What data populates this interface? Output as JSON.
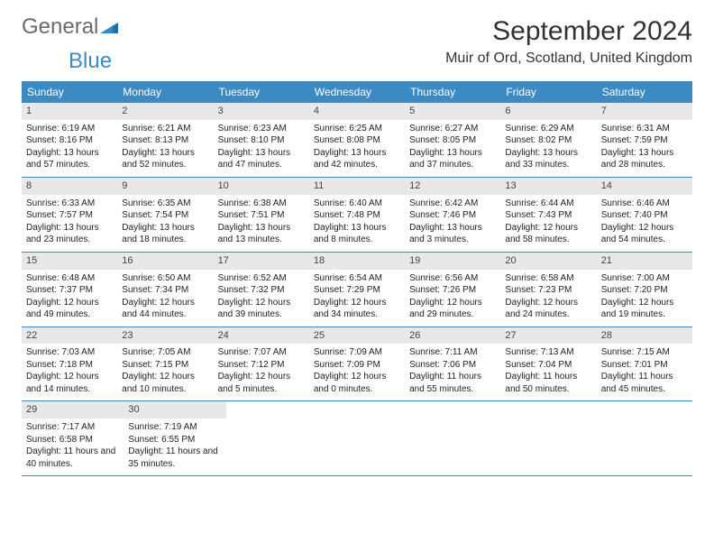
{
  "logo": {
    "text_general": "General",
    "text_blue": "Blue"
  },
  "title": "September 2024",
  "location": "Muir of Ord, Scotland, United Kingdom",
  "colors": {
    "header_bg": "#3b8ac4",
    "header_text": "#ffffff",
    "daynum_bg": "#e8e8e8",
    "border": "#3b8ac4",
    "text": "#222222"
  },
  "weekdays": [
    "Sunday",
    "Monday",
    "Tuesday",
    "Wednesday",
    "Thursday",
    "Friday",
    "Saturday"
  ],
  "weeks": [
    [
      {
        "num": "1",
        "sunrise": "Sunrise: 6:19 AM",
        "sunset": "Sunset: 8:16 PM",
        "daylight": "Daylight: 13 hours and 57 minutes."
      },
      {
        "num": "2",
        "sunrise": "Sunrise: 6:21 AM",
        "sunset": "Sunset: 8:13 PM",
        "daylight": "Daylight: 13 hours and 52 minutes."
      },
      {
        "num": "3",
        "sunrise": "Sunrise: 6:23 AM",
        "sunset": "Sunset: 8:10 PM",
        "daylight": "Daylight: 13 hours and 47 minutes."
      },
      {
        "num": "4",
        "sunrise": "Sunrise: 6:25 AM",
        "sunset": "Sunset: 8:08 PM",
        "daylight": "Daylight: 13 hours and 42 minutes."
      },
      {
        "num": "5",
        "sunrise": "Sunrise: 6:27 AM",
        "sunset": "Sunset: 8:05 PM",
        "daylight": "Daylight: 13 hours and 37 minutes."
      },
      {
        "num": "6",
        "sunrise": "Sunrise: 6:29 AM",
        "sunset": "Sunset: 8:02 PM",
        "daylight": "Daylight: 13 hours and 33 minutes."
      },
      {
        "num": "7",
        "sunrise": "Sunrise: 6:31 AM",
        "sunset": "Sunset: 7:59 PM",
        "daylight": "Daylight: 13 hours and 28 minutes."
      }
    ],
    [
      {
        "num": "8",
        "sunrise": "Sunrise: 6:33 AM",
        "sunset": "Sunset: 7:57 PM",
        "daylight": "Daylight: 13 hours and 23 minutes."
      },
      {
        "num": "9",
        "sunrise": "Sunrise: 6:35 AM",
        "sunset": "Sunset: 7:54 PM",
        "daylight": "Daylight: 13 hours and 18 minutes."
      },
      {
        "num": "10",
        "sunrise": "Sunrise: 6:38 AM",
        "sunset": "Sunset: 7:51 PM",
        "daylight": "Daylight: 13 hours and 13 minutes."
      },
      {
        "num": "11",
        "sunrise": "Sunrise: 6:40 AM",
        "sunset": "Sunset: 7:48 PM",
        "daylight": "Daylight: 13 hours and 8 minutes."
      },
      {
        "num": "12",
        "sunrise": "Sunrise: 6:42 AM",
        "sunset": "Sunset: 7:46 PM",
        "daylight": "Daylight: 13 hours and 3 minutes."
      },
      {
        "num": "13",
        "sunrise": "Sunrise: 6:44 AM",
        "sunset": "Sunset: 7:43 PM",
        "daylight": "Daylight: 12 hours and 58 minutes."
      },
      {
        "num": "14",
        "sunrise": "Sunrise: 6:46 AM",
        "sunset": "Sunset: 7:40 PM",
        "daylight": "Daylight: 12 hours and 54 minutes."
      }
    ],
    [
      {
        "num": "15",
        "sunrise": "Sunrise: 6:48 AM",
        "sunset": "Sunset: 7:37 PM",
        "daylight": "Daylight: 12 hours and 49 minutes."
      },
      {
        "num": "16",
        "sunrise": "Sunrise: 6:50 AM",
        "sunset": "Sunset: 7:34 PM",
        "daylight": "Daylight: 12 hours and 44 minutes."
      },
      {
        "num": "17",
        "sunrise": "Sunrise: 6:52 AM",
        "sunset": "Sunset: 7:32 PM",
        "daylight": "Daylight: 12 hours and 39 minutes."
      },
      {
        "num": "18",
        "sunrise": "Sunrise: 6:54 AM",
        "sunset": "Sunset: 7:29 PM",
        "daylight": "Daylight: 12 hours and 34 minutes."
      },
      {
        "num": "19",
        "sunrise": "Sunrise: 6:56 AM",
        "sunset": "Sunset: 7:26 PM",
        "daylight": "Daylight: 12 hours and 29 minutes."
      },
      {
        "num": "20",
        "sunrise": "Sunrise: 6:58 AM",
        "sunset": "Sunset: 7:23 PM",
        "daylight": "Daylight: 12 hours and 24 minutes."
      },
      {
        "num": "21",
        "sunrise": "Sunrise: 7:00 AM",
        "sunset": "Sunset: 7:20 PM",
        "daylight": "Daylight: 12 hours and 19 minutes."
      }
    ],
    [
      {
        "num": "22",
        "sunrise": "Sunrise: 7:03 AM",
        "sunset": "Sunset: 7:18 PM",
        "daylight": "Daylight: 12 hours and 14 minutes."
      },
      {
        "num": "23",
        "sunrise": "Sunrise: 7:05 AM",
        "sunset": "Sunset: 7:15 PM",
        "daylight": "Daylight: 12 hours and 10 minutes."
      },
      {
        "num": "24",
        "sunrise": "Sunrise: 7:07 AM",
        "sunset": "Sunset: 7:12 PM",
        "daylight": "Daylight: 12 hours and 5 minutes."
      },
      {
        "num": "25",
        "sunrise": "Sunrise: 7:09 AM",
        "sunset": "Sunset: 7:09 PM",
        "daylight": "Daylight: 12 hours and 0 minutes."
      },
      {
        "num": "26",
        "sunrise": "Sunrise: 7:11 AM",
        "sunset": "Sunset: 7:06 PM",
        "daylight": "Daylight: 11 hours and 55 minutes."
      },
      {
        "num": "27",
        "sunrise": "Sunrise: 7:13 AM",
        "sunset": "Sunset: 7:04 PM",
        "daylight": "Daylight: 11 hours and 50 minutes."
      },
      {
        "num": "28",
        "sunrise": "Sunrise: 7:15 AM",
        "sunset": "Sunset: 7:01 PM",
        "daylight": "Daylight: 11 hours and 45 minutes."
      }
    ],
    [
      {
        "num": "29",
        "sunrise": "Sunrise: 7:17 AM",
        "sunset": "Sunset: 6:58 PM",
        "daylight": "Daylight: 11 hours and 40 minutes."
      },
      {
        "num": "30",
        "sunrise": "Sunrise: 7:19 AM",
        "sunset": "Sunset: 6:55 PM",
        "daylight": "Daylight: 11 hours and 35 minutes."
      },
      null,
      null,
      null,
      null,
      null
    ]
  ]
}
